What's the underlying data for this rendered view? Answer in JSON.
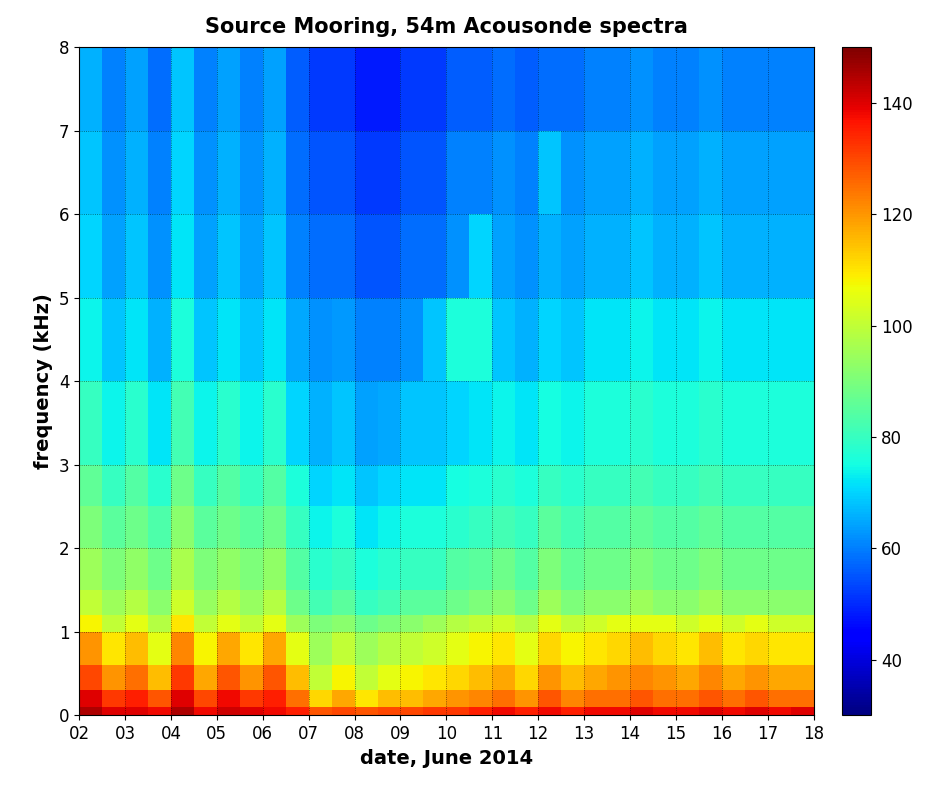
{
  "chart_data": {
    "type": "heatmap",
    "title": "Source Mooring, 54m Acousonde spectra",
    "x_label": "date, June 2014",
    "y_label": "frequency (kHz)",
    "xlim": [
      2,
      18
    ],
    "xticks": [
      {
        "value": 2,
        "label": "02"
      },
      {
        "value": 3,
        "label": "03"
      },
      {
        "value": 4,
        "label": "04"
      },
      {
        "value": 5,
        "label": "05"
      },
      {
        "value": 6,
        "label": "06"
      },
      {
        "value": 7,
        "label": "07"
      },
      {
        "value": 8,
        "label": "08"
      },
      {
        "value": 9,
        "label": "09"
      },
      10,
      11,
      12,
      13,
      14,
      15,
      16,
      17,
      18
    ],
    "ylim": [
      0,
      8
    ],
    "yticks": [
      0,
      1,
      2,
      3,
      4,
      5,
      6,
      7,
      8
    ],
    "grid": true,
    "x_edges": [
      2,
      2.5,
      3,
      3.5,
      4,
      4.5,
      5,
      5.5,
      6,
      6.5,
      7,
      7.5,
      8,
      8.5,
      9,
      9.5,
      10,
      10.5,
      11,
      11.5,
      12,
      12.5,
      13,
      13.5,
      14,
      14.5,
      15,
      15.5,
      16,
      16.5,
      17,
      17.5,
      18
    ],
    "y_edges": [
      0,
      0.1,
      0.3,
      0.6,
      1.0,
      1.2,
      1.5,
      2.0,
      2.5,
      3.0,
      4,
      5,
      6,
      7,
      8
    ],
    "values": [
      [
        145,
        140,
        140,
        138,
        145,
        138,
        142,
        140,
        138,
        135,
        128,
        130,
        128,
        130,
        130,
        132,
        132,
        135,
        138,
        135,
        138,
        135,
        138,
        138,
        140,
        138,
        138,
        140,
        138,
        140,
        138,
        140
      ],
      [
        140,
        132,
        135,
        128,
        140,
        130,
        138,
        132,
        135,
        125,
        112,
        118,
        110,
        115,
        115,
        118,
        120,
        122,
        125,
        120,
        128,
        122,
        125,
        125,
        128,
        125,
        125,
        128,
        125,
        128,
        125,
        125
      ],
      [
        130,
        120,
        125,
        115,
        132,
        118,
        128,
        120,
        128,
        115,
        100,
        108,
        100,
        105,
        108,
        110,
        112,
        115,
        118,
        112,
        120,
        115,
        118,
        120,
        122,
        120,
        118,
        122,
        118,
        120,
        118,
        118
      ],
      [
        120,
        110,
        115,
        105,
        122,
        108,
        118,
        110,
        118,
        105,
        95,
        100,
        95,
        98,
        100,
        102,
        105,
        108,
        110,
        105,
        112,
        108,
        110,
        112,
        115,
        112,
        110,
        115,
        110,
        112,
        110,
        110
      ],
      [
        108,
        100,
        105,
        98,
        110,
        100,
        105,
        100,
        105,
        95,
        90,
        92,
        88,
        90,
        92,
        95,
        98,
        100,
        102,
        98,
        105,
        100,
        102,
        105,
        105,
        105,
        102,
        105,
        102,
        105,
        102,
        102
      ],
      [
        100,
        95,
        98,
        92,
        102,
        94,
        98,
        94,
        98,
        88,
        82,
        85,
        80,
        82,
        85,
        85,
        88,
        90,
        92,
        88,
        95,
        90,
        92,
        92,
        95,
        92,
        92,
        95,
        92,
        92,
        92,
        92
      ],
      [
        95,
        90,
        93,
        88,
        97,
        90,
        93,
        90,
        93,
        84,
        78,
        80,
        76,
        78,
        80,
        80,
        84,
        85,
        88,
        84,
        90,
        86,
        88,
        88,
        90,
        88,
        88,
        90,
        88,
        88,
        88,
        88
      ],
      [
        90,
        85,
        88,
        83,
        92,
        85,
        88,
        85,
        88,
        80,
        74,
        76,
        72,
        74,
        76,
        76,
        78,
        80,
        82,
        80,
        85,
        82,
        84,
        84,
        86,
        84,
        84,
        86,
        84,
        84,
        84,
        84
      ],
      [
        86,
        80,
        84,
        78,
        88,
        80,
        84,
        80,
        84,
        76,
        70,
        72,
        68,
        70,
        72,
        72,
        75,
        76,
        78,
        76,
        80,
        78,
        80,
        80,
        82,
        80,
        80,
        82,
        80,
        80,
        80,
        80
      ],
      [
        80,
        74,
        78,
        72,
        82,
        74,
        78,
        74,
        78,
        70,
        66,
        68,
        64,
        65,
        68,
        68,
        70,
        72,
        74,
        72,
        75,
        74,
        76,
        76,
        78,
        76,
        76,
        78,
        76,
        76,
        76,
        76
      ],
      [
        74,
        68,
        72,
        66,
        76,
        68,
        72,
        68,
        72,
        65,
        62,
        63,
        60,
        60,
        62,
        68,
        76,
        76,
        68,
        66,
        70,
        68,
        72,
        72,
        74,
        72,
        72,
        74,
        72,
        72,
        72,
        72
      ],
      [
        70,
        64,
        68,
        62,
        72,
        64,
        68,
        64,
        68,
        60,
        58,
        58,
        55,
        55,
        58,
        58,
        62,
        70,
        64,
        62,
        66,
        64,
        66,
        66,
        68,
        66,
        66,
        68,
        66,
        66,
        66,
        66
      ],
      [
        68,
        62,
        66,
        60,
        70,
        62,
        66,
        62,
        66,
        58,
        55,
        55,
        52,
        52,
        55,
        55,
        60,
        60,
        62,
        60,
        68,
        62,
        64,
        64,
        66,
        64,
        64,
        66,
        64,
        64,
        64,
        64
      ],
      [
        66,
        60,
        64,
        58,
        68,
        60,
        64,
        60,
        64,
        56,
        52,
        52,
        48,
        48,
        52,
        52,
        56,
        56,
        58,
        56,
        58,
        58,
        60,
        60,
        62,
        60,
        60,
        62,
        60,
        60,
        60,
        60
      ]
    ],
    "colorbar_range": [
      30,
      150
    ],
    "colorbar_ticks": [
      40,
      60,
      80,
      100,
      120,
      140
    ]
  }
}
